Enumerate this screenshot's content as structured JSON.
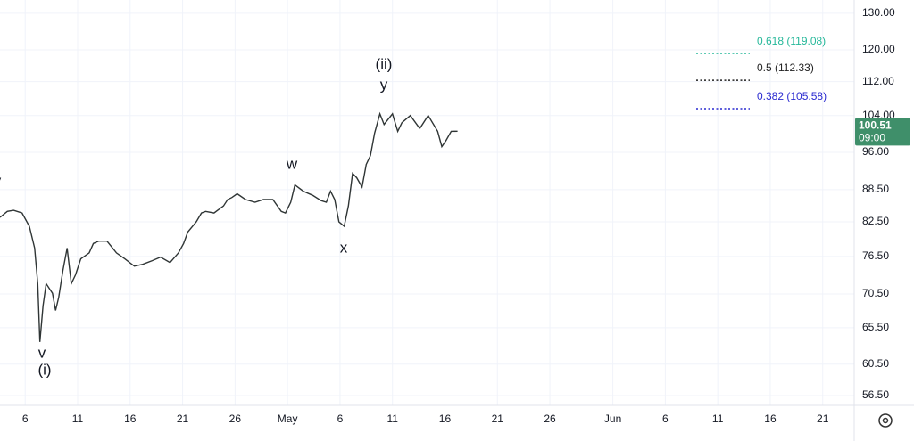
{
  "chart_data": {
    "type": "line",
    "log_scale": true,
    "grid": true,
    "x": [
      -2.4,
      -1.7,
      -1.1,
      -0.3,
      0.4,
      0.9,
      1.2,
      1.4,
      1.7,
      2.0,
      2.6,
      2.9,
      3.2,
      3.6,
      4.0,
      4.4,
      4.8,
      5.3,
      6.1,
      6.5,
      7.0,
      7.8,
      8.7,
      9.5,
      10.4,
      11.2,
      12.1,
      12.9,
      13.8,
      14.6,
      15.1,
      15.5,
      16.3,
      16.8,
      17.2,
      18.0,
      18.9,
      19.3,
      19.7,
      20.2,
      21.0,
      21.9,
      22.7,
      23.6,
      24.4,
      24.8,
      25.3,
      25.7,
      26.5,
      27.4,
      28.2,
      28.7,
      29.1,
      29.5,
      29.9,
      30.4,
      30.8,
      31.2,
      31.6,
      32.1,
      32.5,
      32.9,
      33.3,
      33.8,
      34.2,
      35.0,
      35.5,
      35.9,
      36.7,
      37.6,
      38.4,
      39.3,
      39.7,
      40.1,
      40.6,
      41.2
    ],
    "series": [
      {
        "color": "#2f3535",
        "values": [
          83.3,
          84.4,
          84.6,
          84.1,
          81.7,
          77.9,
          72.1,
          63.5,
          68.7,
          72.1,
          70.6,
          68.0,
          70.0,
          74.2,
          77.9,
          72.1,
          73.5,
          76.1,
          77.1,
          78.7,
          79.1,
          79.1,
          77.1,
          76.1,
          74.9,
          75.2,
          75.8,
          76.4,
          75.5,
          77.1,
          78.7,
          80.7,
          82.5,
          84.1,
          84.4,
          84.1,
          85.4,
          86.6,
          87.0,
          87.7,
          86.6,
          86.1,
          86.6,
          86.6,
          84.4,
          84.1,
          86.1,
          89.4,
          88.2,
          87.4,
          86.4,
          86.1,
          88.2,
          86.6,
          82.5,
          81.7,
          85.4,
          91.7,
          90.8,
          89.0,
          93.5,
          95.3,
          100.1,
          104.4,
          102.0,
          104.4,
          100.5,
          102.4,
          104.0,
          101.1,
          104.0,
          100.5,
          97.2,
          98.5,
          100.5,
          100.51
        ]
      }
    ],
    "xlim": [
      -2.4,
      79
    ],
    "xticks": [
      {
        "value": 0,
        "label": "6"
      },
      {
        "value": 5,
        "label": "11"
      },
      {
        "value": 10,
        "label": "16"
      },
      {
        "value": 15,
        "label": "21"
      },
      {
        "value": 20,
        "label": "26"
      },
      {
        "value": 25,
        "label": "May"
      },
      {
        "value": 30,
        "label": "6"
      },
      {
        "value": 35,
        "label": "11"
      },
      {
        "value": 40,
        "label": "16"
      },
      {
        "value": 45,
        "label": "21"
      },
      {
        "value": 50,
        "label": "26"
      },
      {
        "value": 56,
        "label": "Jun"
      },
      {
        "value": 61,
        "label": "6"
      },
      {
        "value": 66,
        "label": "11"
      },
      {
        "value": 71,
        "label": "16"
      },
      {
        "value": 76,
        "label": "21"
      }
    ],
    "ylim": [
      55.3,
      133.8
    ],
    "yticks": [
      {
        "value": 130,
        "label": "130.00"
      },
      {
        "value": 120,
        "label": "120.00"
      },
      {
        "value": 112,
        "label": "112.00"
      },
      {
        "value": 104,
        "label": "104.00"
      },
      {
        "value": 96,
        "label": "96.00"
      },
      {
        "value": 88.5,
        "label": "88.50"
      },
      {
        "value": 82.5,
        "label": "82.50"
      },
      {
        "value": 76.5,
        "label": "76.50"
      },
      {
        "value": 70.5,
        "label": "70.50"
      },
      {
        "value": 65.5,
        "label": "65.50"
      },
      {
        "value": 60.5,
        "label": "60.50"
      },
      {
        "value": 56.5,
        "label": "56.50"
      }
    ],
    "fib_levels": [
      {
        "label": "0.618 (119.08)",
        "value": 119.08,
        "color": "#26b89a"
      },
      {
        "label": "0.5 (112.33)",
        "value": 112.33,
        "color": "#222222"
      },
      {
        "label": "0.382 (105.58)",
        "value": 105.58,
        "color": "#2a2ad0"
      }
    ],
    "last_price": {
      "value": 100.51,
      "countdown": "09:00",
      "color": "#3f8f6a"
    },
    "annotations": [
      "v",
      "w",
      "x",
      "(ii)",
      "y",
      "v",
      "(i)"
    ]
  }
}
